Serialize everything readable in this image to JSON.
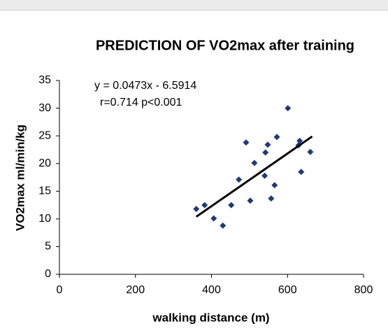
{
  "chart_data": {
    "type": "scatter",
    "title": "PREDICTION OF VO2max after training",
    "x_label": "walking distance (m)",
    "y_label": "VO2max ml/min/kg",
    "annotations": [
      "y = 0.0473x - 6.5914",
      "r=0.714 p<0.001"
    ],
    "series": [
      {
        "color": "#1f3a7a",
        "x": [
          360,
          382,
          406,
          430,
          452,
          472,
          491,
          502,
          513,
          540,
          542,
          548,
          557,
          566,
          572,
          601,
          629,
          632,
          636,
          660
        ],
        "values": [
          11.8,
          12.5,
          10.1,
          8.8,
          12.5,
          17.1,
          23.8,
          13.3,
          20.1,
          17.8,
          22.0,
          23.4,
          13.7,
          16.1,
          24.8,
          30.0,
          23.3,
          24.1,
          18.5,
          22.1
        ]
      }
    ],
    "trendline": {
      "color": "#000000",
      "x": [
        360,
        665
      ],
      "values": [
        10.4,
        24.9
      ]
    },
    "xlim": [
      0,
      800
    ],
    "xticks": [
      0,
      200,
      400,
      600,
      800
    ],
    "ylim": [
      0,
      35
    ],
    "yticks": [
      0,
      5,
      10,
      15,
      20,
      25,
      30,
      35
    ]
  }
}
